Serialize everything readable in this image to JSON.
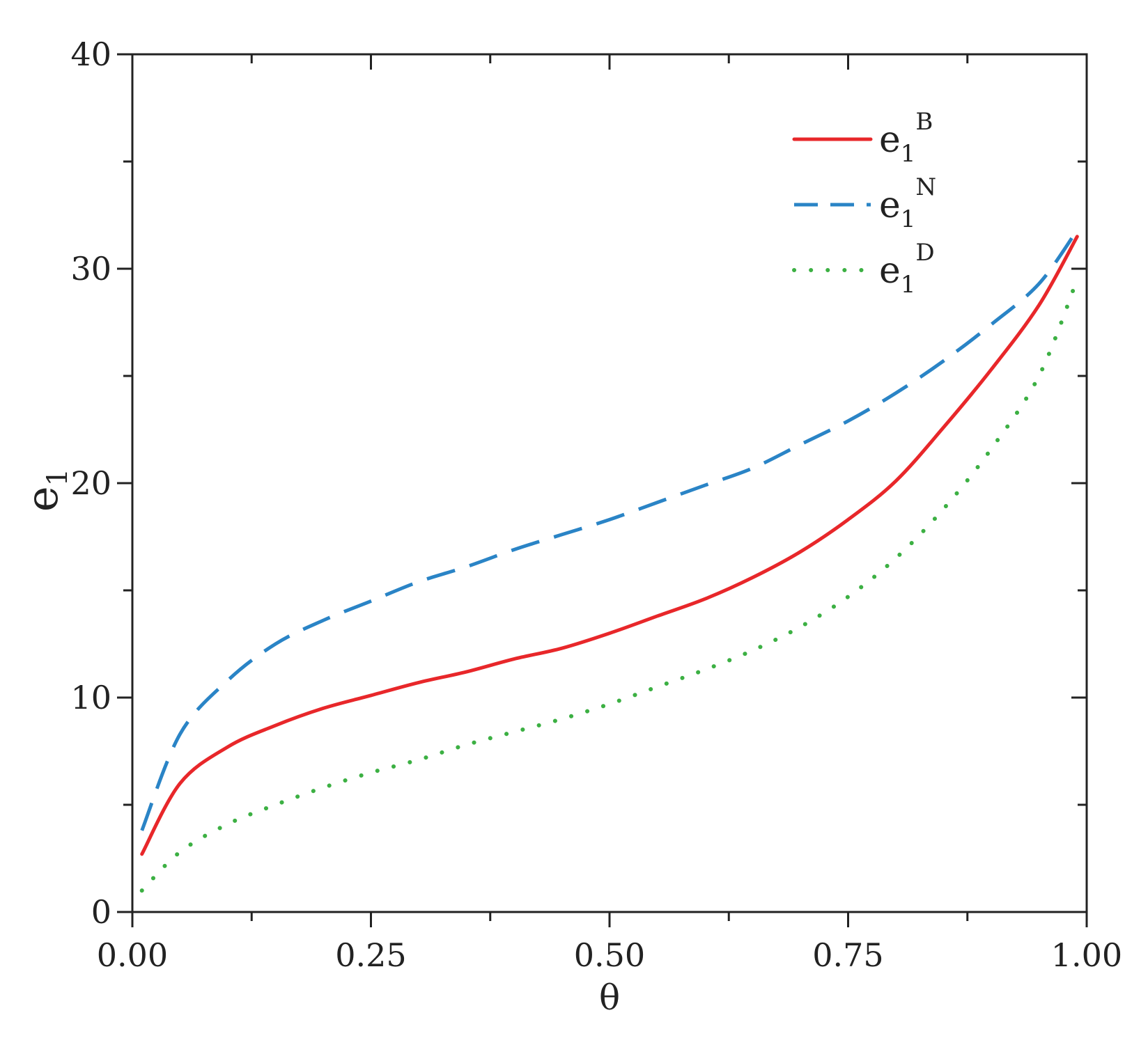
{
  "chart_data": {
    "type": "line",
    "x": [
      0.01,
      0.05,
      0.1,
      0.15,
      0.2,
      0.25,
      0.3,
      0.35,
      0.4,
      0.45,
      0.5,
      0.55,
      0.6,
      0.65,
      0.7,
      0.75,
      0.8,
      0.85,
      0.9,
      0.95,
      0.99
    ],
    "series": [
      {
        "name": "e1B",
        "base": "e",
        "sub": "1",
        "sup": "B",
        "color": "#e8272a",
        "style": "solid",
        "values": [
          2.7,
          6.0,
          7.7,
          8.7,
          9.5,
          10.1,
          10.7,
          11.2,
          11.8,
          12.3,
          13.0,
          13.8,
          14.6,
          15.6,
          16.8,
          18.3,
          20.1,
          22.6,
          25.3,
          28.3,
          31.5
        ]
      },
      {
        "name": "e1N",
        "base": "e",
        "sub": "1",
        "sup": "N",
        "color": "#2a84c6",
        "style": "dashed",
        "values": [
          3.8,
          8.3,
          10.8,
          12.5,
          13.6,
          14.5,
          15.4,
          16.1,
          16.9,
          17.6,
          18.3,
          19.1,
          19.9,
          20.7,
          21.8,
          22.9,
          24.2,
          25.7,
          27.4,
          29.3,
          31.8
        ]
      },
      {
        "name": "e1D",
        "base": "e",
        "sub": "1",
        "sup": "D",
        "color": "#3cb043",
        "style": "dotted",
        "values": [
          1.0,
          2.8,
          4.1,
          5.0,
          5.8,
          6.5,
          7.1,
          7.8,
          8.4,
          9.0,
          9.7,
          10.5,
          11.3,
          12.2,
          13.3,
          14.7,
          16.5,
          18.8,
          21.6,
          25.0,
          29.5
        ]
      }
    ],
    "xlabel": "θ",
    "ylabel_base": "e",
    "ylabel_sub": "1",
    "xlim": [
      0.0,
      1.0
    ],
    "ylim": [
      0,
      40
    ],
    "x_ticks": [
      "0.00",
      "0.25",
      "0.50",
      "0.75",
      "1.00"
    ],
    "x_tick_values": [
      0.0,
      0.25,
      0.5,
      0.75,
      1.0
    ],
    "y_ticks": [
      "0",
      "10",
      "20",
      "30",
      "40"
    ],
    "y_tick_values": [
      0,
      10,
      20,
      30,
      40
    ],
    "grid": false,
    "legend_position": "top-right"
  }
}
